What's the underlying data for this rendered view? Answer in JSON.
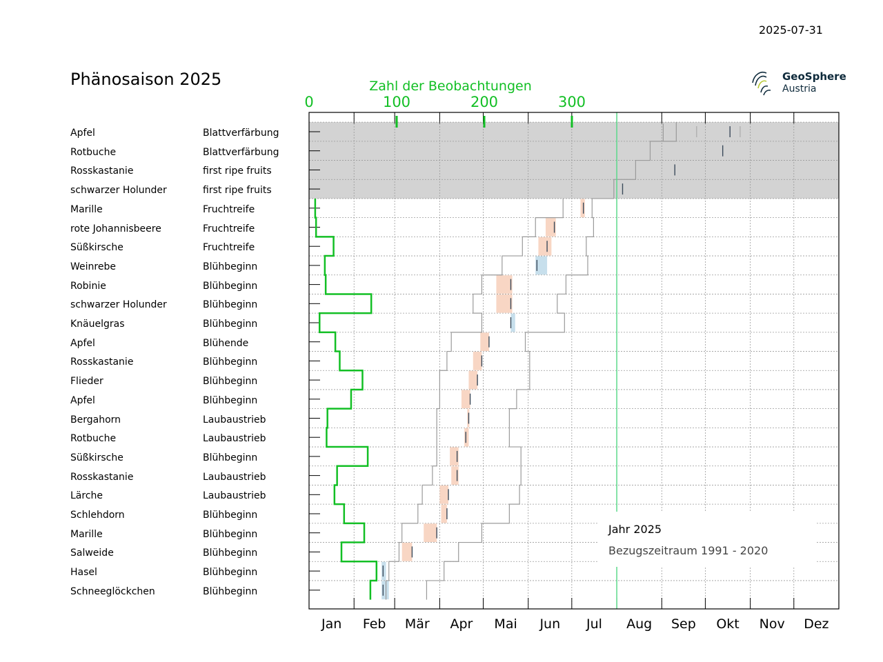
{
  "header": {
    "date": "2025-07-31",
    "title": "Phänosaison 2025",
    "logo_name": "GeoSphere",
    "logo_sub": "Austria"
  },
  "chart_data": {
    "type": "phenology-timeline",
    "title": "Phänosaison 2025",
    "report_date": "2025-07-31",
    "top_axis": {
      "label": "Zahl der Beobachtungen",
      "ticks": [
        0,
        100,
        200,
        300
      ],
      "color": "#12bf24"
    },
    "months": [
      "Jan",
      "Feb",
      "Mär",
      "Apr",
      "Mai",
      "Jun",
      "Jul",
      "Aug",
      "Sep",
      "Okt",
      "Nov",
      "Dez"
    ],
    "current_day_of_year": 212,
    "pending_rows": 4,
    "rows": [
      {
        "species": "Apfel",
        "phase": "Blattverfärbung",
        "obs": null,
        "mark": 290,
        "mark2": 267,
        "mark3": 297,
        "bar": null
      },
      {
        "species": "Rotbuche",
        "phase": "Blattverfärbung",
        "obs": null,
        "mark": 285,
        "bar": null
      },
      {
        "species": "Rosskastanie",
        "phase": "first ripe fruits",
        "obs": null,
        "mark": 252,
        "bar": null
      },
      {
        "species": "schwarzer Holunder",
        "phase": "first ripe fruits",
        "obs": null,
        "mark": 216,
        "bar": null
      },
      {
        "species": "Marille",
        "phase": "Fruchtreife",
        "obs": 7,
        "mark": 189,
        "bar": [
          187,
          190,
          "late"
        ]
      },
      {
        "species": "rote Johannisbeere",
        "phase": "Fruchtreife",
        "obs": 8,
        "mark": 169,
        "bar": [
          163,
          170,
          "late"
        ]
      },
      {
        "species": "Süßkirsche",
        "phase": "Fruchtreife",
        "obs": 28,
        "mark": 164,
        "bar": [
          158,
          167,
          "late"
        ]
      },
      {
        "species": "Weinrebe",
        "phase": "Blühbeginn",
        "obs": 18,
        "mark": 157,
        "bar": [
          156,
          164,
          "early"
        ]
      },
      {
        "species": "Robinie",
        "phase": "Blühbeginn",
        "obs": 19,
        "mark": 139,
        "bar": [
          129,
          140,
          "late"
        ]
      },
      {
        "species": "schwarzer Holunder",
        "phase": "Blühbeginn",
        "obs": 71,
        "mark": 139,
        "bar": [
          129,
          140,
          "late"
        ]
      },
      {
        "species": "Knäuelgras",
        "phase": "Blühbeginn",
        "obs": 12,
        "mark": 139,
        "bar": [
          139,
          142,
          "early"
        ]
      },
      {
        "species": "Apfel",
        "phase": "Blühende",
        "obs": 30,
        "mark": 124,
        "bar": [
          118,
          124,
          "late"
        ]
      },
      {
        "species": "Rosskastanie",
        "phase": "Blühbeginn",
        "obs": 35,
        "mark": 119,
        "bar": [
          113,
          119,
          "late"
        ]
      },
      {
        "species": "Flieder",
        "phase": "Blühbeginn",
        "obs": 61,
        "mark": 116,
        "bar": [
          110,
          116,
          "late"
        ]
      },
      {
        "species": "Apfel",
        "phase": "Blühbeginn",
        "obs": 48,
        "mark": 111,
        "bar": [
          105,
          111,
          "late"
        ]
      },
      {
        "species": "Bergahorn",
        "phase": "Laubaustrieb",
        "obs": 21,
        "mark": 110,
        "bar": [
          109,
          110,
          "late"
        ]
      },
      {
        "species": "Rotbuche",
        "phase": "Laubaustrieb",
        "obs": 20,
        "mark": 108,
        "bar": [
          107,
          110,
          "late"
        ]
      },
      {
        "species": "Süßkirsche",
        "phase": "Blühbeginn",
        "obs": 67,
        "mark": 102,
        "bar": [
          97,
          103,
          "late"
        ]
      },
      {
        "species": "Rosskastanie",
        "phase": "Laubaustrieb",
        "obs": 32,
        "mark": 102,
        "bar": [
          98,
          103,
          "late"
        ]
      },
      {
        "species": "Lärche",
        "phase": "Laubaustrieb",
        "obs": 29,
        "mark": 96,
        "bar": [
          90,
          96,
          "late"
        ]
      },
      {
        "species": "Schlehdorn",
        "phase": "Blühbeginn",
        "obs": 40,
        "mark": 95,
        "bar": [
          91,
          95,
          "late"
        ]
      },
      {
        "species": "Marille",
        "phase": "Blühbeginn",
        "obs": 63,
        "mark": 88,
        "bar": [
          79,
          88,
          "late"
        ]
      },
      {
        "species": "Salweide",
        "phase": "Blühbeginn",
        "obs": 37,
        "mark": 71,
        "bar": [
          64,
          71,
          "late"
        ]
      },
      {
        "species": "Hasel",
        "phase": "Blühbeginn",
        "obs": 77,
        "mark": 51,
        "bar": [
          50,
          53,
          "early"
        ]
      },
      {
        "species": "Schneeglöckchen",
        "phase": "Blühbeginn",
        "obs": 70,
        "mark": 51,
        "bar": [
          50,
          55,
          "early"
        ]
      }
    ],
    "reference_early": [
      null,
      null,
      null,
      null,
      175,
      156,
      147,
      133,
      119,
      113,
      119,
      98,
      95,
      90,
      90,
      88,
      88,
      88,
      85,
      78,
      75,
      64,
      62,
      55,
      53
    ],
    "reference_late": [
      253,
      235,
      225,
      210,
      195,
      196,
      191,
      192,
      177,
      171,
      176,
      149,
      152,
      152,
      143,
      138,
      138,
      146,
      146,
      145,
      138,
      119,
      103,
      93,
      81
    ],
    "reference_top": {
      "early_mark": 244,
      "late_mark": 285
    },
    "legend": {
      "items": [
        "Jahr 2025",
        "Bezugszeitraum 1991 - 2020"
      ]
    },
    "colors": {
      "obs_line": "#12bf24",
      "late_bar": "#f8d6c4",
      "early_bar": "#c7dfec",
      "reference": "#9a9a9a",
      "today_line": "#5bd98a",
      "pending_band": "#d3d3d3"
    }
  }
}
